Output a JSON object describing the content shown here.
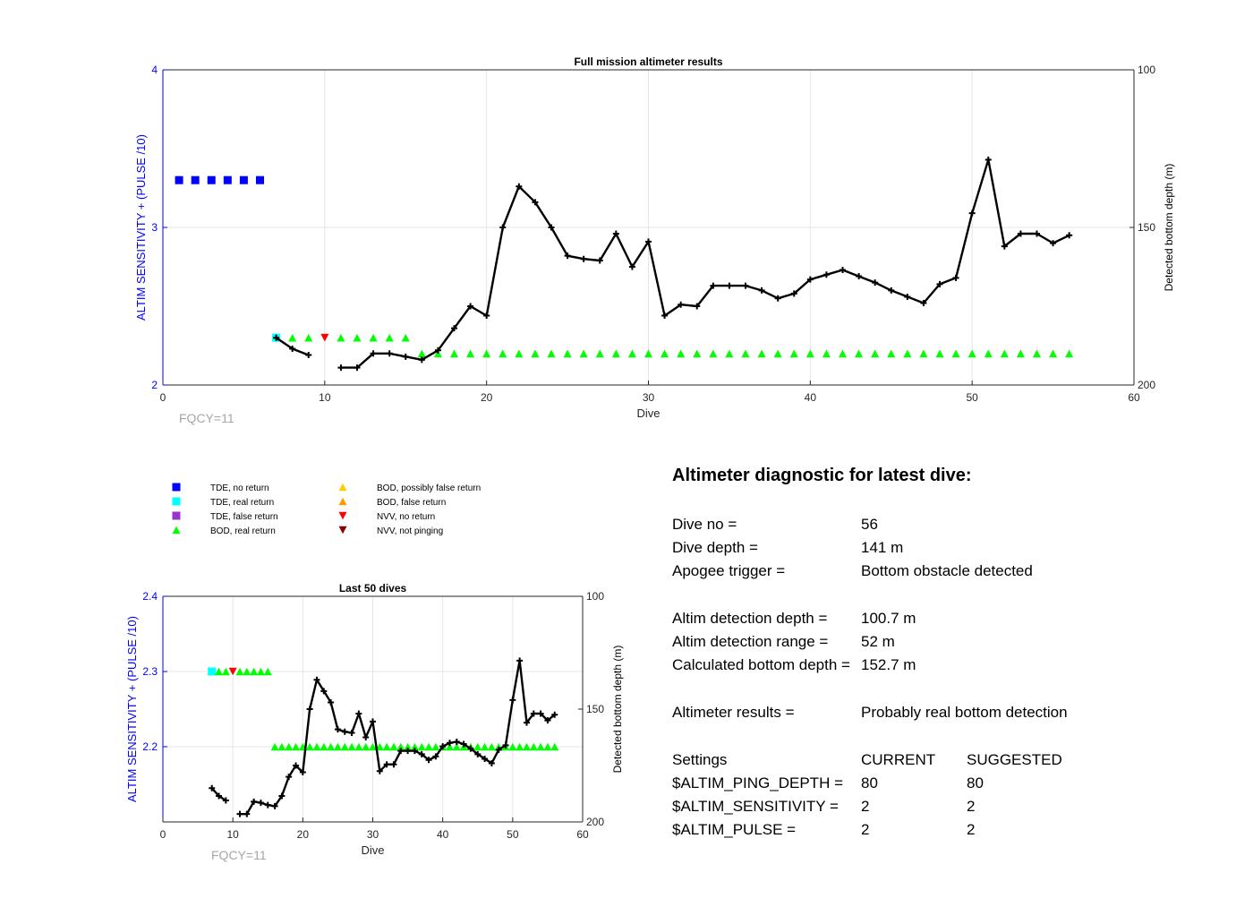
{
  "chart_data": [
    {
      "type": "scatter",
      "title": "Full mission altimeter results",
      "xlabel": "Dive",
      "ylabel": "ALTIM SENSITIVITY + (PULSE /10)",
      "y2label": "Detected bottom depth (m)",
      "xlim": [
        0,
        60
      ],
      "ylim": [
        2,
        4
      ],
      "y2lim": [
        200,
        100
      ],
      "y2_reversed": true,
      "xticks": [
        "0",
        "10",
        "20",
        "30",
        "40",
        "50",
        "60"
      ],
      "yticks": [
        "2",
        "3",
        "4"
      ],
      "y2ticks": [
        "100",
        "150",
        "200"
      ],
      "grid": "on",
      "footnote": "FQCY=11",
      "series": [
        {
          "name": "TDE, no return",
          "marker": "square",
          "color": "#0000ff",
          "x": [
            1,
            2,
            3,
            4,
            5,
            6
          ],
          "y": [
            3.3,
            3.3,
            3.3,
            3.3,
            3.3,
            3.3
          ]
        },
        {
          "name": "TDE, real return",
          "marker": "square",
          "color": "#00ffff",
          "x": [
            7
          ],
          "y": [
            2.3
          ]
        },
        {
          "name": "BOD, real return",
          "marker": "triangle-up",
          "color": "#00ff00",
          "x": [
            8,
            9,
            11,
            12,
            13,
            14,
            15,
            16,
            17,
            18,
            19,
            20,
            21,
            22,
            23,
            24,
            25,
            26,
            27,
            28,
            29,
            30,
            31,
            32,
            33,
            34,
            35,
            36,
            37,
            38,
            39,
            40,
            41,
            42,
            43,
            44,
            45,
            46,
            47,
            48,
            49,
            50,
            51,
            52,
            53,
            54,
            55,
            56
          ],
          "y": [
            2.3,
            2.3,
            2.3,
            2.3,
            2.3,
            2.3,
            2.3,
            2.2,
            2.2,
            2.2,
            2.2,
            2.2,
            2.2,
            2.2,
            2.2,
            2.2,
            2.2,
            2.2,
            2.2,
            2.2,
            2.2,
            2.2,
            2.2,
            2.2,
            2.2,
            2.2,
            2.2,
            2.2,
            2.2,
            2.2,
            2.2,
            2.2,
            2.2,
            2.2,
            2.2,
            2.2,
            2.2,
            2.2,
            2.2,
            2.2,
            2.2,
            2.2,
            2.2,
            2.2,
            2.2,
            2.2,
            2.2,
            2.2
          ]
        },
        {
          "name": "NVV, no return",
          "marker": "triangle-down",
          "color": "#ff0000",
          "x": [
            10
          ],
          "y": [
            2.3
          ]
        },
        {
          "name": "Detected bottom depth",
          "axis": "right",
          "marker": "plus",
          "color": "#000000",
          "x": [
            7,
            8,
            9,
            null,
            11,
            12,
            13,
            14,
            15,
            16,
            17,
            18,
            19,
            20,
            21,
            22,
            23,
            24,
            25,
            26,
            27,
            28,
            29,
            30,
            31,
            32,
            33,
            34,
            35,
            36,
            37,
            38,
            39,
            40,
            41,
            42,
            43,
            44,
            45,
            46,
            47,
            48,
            49,
            50,
            51,
            52,
            53,
            54,
            55,
            56
          ],
          "y": [
            185,
            188.5,
            190.5,
            null,
            194.5,
            194.5,
            190,
            190,
            191,
            192,
            189,
            182,
            175,
            178,
            150,
            137,
            142,
            150,
            159,
            160,
            160.5,
            152,
            162.5,
            154.5,
            178,
            174.5,
            175,
            168.5,
            168.5,
            168.5,
            170,
            172.5,
            171,
            166.5,
            165,
            163.5,
            165.5,
            167.5,
            170,
            172,
            174,
            168,
            166,
            145.5,
            128.5,
            156,
            152,
            152,
            155,
            152.5
          ]
        }
      ]
    },
    {
      "type": "scatter",
      "title": "Last 50 dives",
      "xlabel": "Dive",
      "ylabel": "ALTIM SENSITIVITY + (PULSE /10)",
      "y2label": "Detected bottom depth (m)",
      "xlim": [
        0,
        60
      ],
      "ylim": [
        2.1,
        2.4
      ],
      "y2lim": [
        200,
        100
      ],
      "y2_reversed": true,
      "xticks": [
        "0",
        "10",
        "20",
        "30",
        "40",
        "50",
        "60"
      ],
      "yticks": [
        "2.2",
        "2.3",
        "2.4"
      ],
      "y2ticks": [
        "100",
        "150",
        "200"
      ],
      "grid": "on",
      "footnote": "FQCY=11",
      "series": [
        {
          "name": "TDE, real return",
          "marker": "square",
          "color": "#00ffff",
          "x": [
            7
          ],
          "y": [
            2.3
          ]
        },
        {
          "name": "BOD, real return",
          "marker": "triangle-up",
          "color": "#00ff00",
          "x": [
            8,
            9,
            11,
            12,
            13,
            14,
            15,
            16,
            17,
            18,
            19,
            20,
            21,
            22,
            23,
            24,
            25,
            26,
            27,
            28,
            29,
            30,
            31,
            32,
            33,
            34,
            35,
            36,
            37,
            38,
            39,
            40,
            41,
            42,
            43,
            44,
            45,
            46,
            47,
            48,
            49,
            50,
            51,
            52,
            53,
            54,
            55,
            56
          ],
          "y": [
            2.3,
            2.3,
            2.3,
            2.3,
            2.3,
            2.3,
            2.3,
            2.2,
            2.2,
            2.2,
            2.2,
            2.2,
            2.2,
            2.2,
            2.2,
            2.2,
            2.2,
            2.2,
            2.2,
            2.2,
            2.2,
            2.2,
            2.2,
            2.2,
            2.2,
            2.2,
            2.2,
            2.2,
            2.2,
            2.2,
            2.2,
            2.2,
            2.2,
            2.2,
            2.2,
            2.2,
            2.2,
            2.2,
            2.2,
            2.2,
            2.2,
            2.2,
            2.2,
            2.2,
            2.2,
            2.2,
            2.2,
            2.2
          ]
        },
        {
          "name": "NVV, no return",
          "marker": "triangle-down",
          "color": "#ff0000",
          "x": [
            10
          ],
          "y": [
            2.3
          ]
        },
        {
          "name": "Detected bottom depth",
          "axis": "right",
          "marker": "plus",
          "color": "#000000",
          "x": [
            7,
            8,
            9,
            null,
            11,
            12,
            13,
            14,
            15,
            16,
            17,
            18,
            19,
            20,
            21,
            22,
            23,
            24,
            25,
            26,
            27,
            28,
            29,
            30,
            31,
            32,
            33,
            34,
            35,
            36,
            37,
            38,
            39,
            40,
            41,
            42,
            43,
            44,
            45,
            46,
            47,
            48,
            49,
            50,
            51,
            52,
            53,
            54,
            55,
            56
          ],
          "y": [
            185,
            188.5,
            190.5,
            null,
            196.5,
            196.5,
            191,
            191.5,
            192.5,
            193,
            188.5,
            180,
            175,
            178,
            150,
            137,
            142,
            147,
            159,
            160,
            160.5,
            152,
            162.5,
            155.5,
            177.5,
            174.5,
            174.5,
            168.5,
            168.5,
            168.5,
            170,
            172.5,
            171,
            166.5,
            165,
            164.5,
            165.5,
            167.5,
            170,
            172,
            174,
            168,
            166,
            146,
            128.5,
            156,
            152,
            152,
            155,
            152.5
          ]
        }
      ]
    }
  ],
  "legend": [
    {
      "label": "TDE, no return",
      "marker": "square",
      "color": "#0000ff"
    },
    {
      "label": "TDE, real return",
      "marker": "square",
      "color": "#00ffff"
    },
    {
      "label": "TDE, false return",
      "marker": "square",
      "color": "#9933cc"
    },
    {
      "label": "BOD, real return",
      "marker": "triangle-up",
      "color": "#00ff00"
    },
    {
      "label": "BOD, possibly false return",
      "marker": "triangle-up",
      "color": "#ffcc00"
    },
    {
      "label": "BOD, false return",
      "marker": "triangle-up",
      "color": "#ff9900"
    },
    {
      "label": "NVV, no return",
      "marker": "triangle-down",
      "color": "#ff0000"
    },
    {
      "label": "NVV, not pinging",
      "marker": "triangle-down",
      "color": "#8b0000"
    }
  ],
  "diagnostic": {
    "title": "Altimeter diagnostic for latest dive:",
    "dive_no": {
      "label": "Dive no =",
      "value": "56"
    },
    "dive_depth": {
      "label": "Dive depth =",
      "value": "141 m"
    },
    "apogee_trigger": {
      "label": "Apogee trigger =",
      "value": "Bottom obstacle detected"
    },
    "detection_depth": {
      "label": "Altim detection depth =",
      "value": "100.7 m"
    },
    "detection_range": {
      "label": "Altim detection range =",
      "value": "52 m"
    },
    "bottom_depth": {
      "label": "Calculated bottom depth =",
      "value": "152.7 m"
    },
    "results": {
      "label": "Altimeter results =",
      "value": "Probably real bottom detection"
    },
    "settings": {
      "label": "Settings",
      "current": "CURRENT",
      "suggested": "SUGGESTED"
    },
    "ping_depth": {
      "label": "$ALTIM_PING_DEPTH =",
      "current": "80",
      "suggested": "80"
    },
    "sensitivity": {
      "label": "$ALTIM_SENSITIVITY =",
      "current": "2",
      "suggested": "2"
    },
    "pulse": {
      "label": "$ALTIM_PULSE =",
      "current": "2",
      "suggested": "2"
    }
  },
  "colors": {
    "left_axis": "#0000ff",
    "grid": "#e6e6e6",
    "footnote": "#a6a6a6"
  }
}
